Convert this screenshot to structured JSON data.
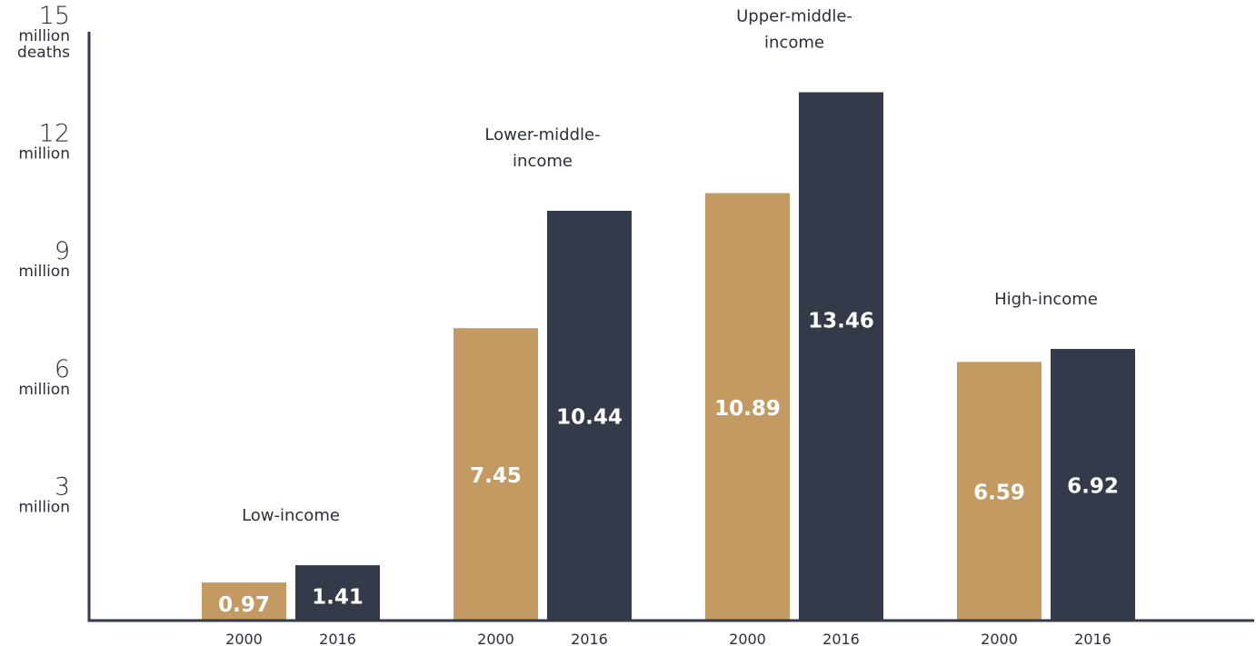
{
  "chart_data": {
    "type": "bar",
    "ylim": [
      0,
      15
    ],
    "grid": false,
    "yticks": [
      {
        "value": 3,
        "label": "3",
        "unit": "million"
      },
      {
        "value": 6,
        "label": "6",
        "unit": "million"
      },
      {
        "value": 9,
        "label": "9",
        "unit": "million"
      },
      {
        "value": 12,
        "label": "12",
        "unit": "million"
      },
      {
        "value": 15,
        "label": "15",
        "unit": "million\ndeaths"
      }
    ],
    "groups": [
      {
        "name": "Low-income",
        "bars": [
          {
            "year": "2000",
            "value": 0.97,
            "label": "0.97"
          },
          {
            "year": "2016",
            "value": 1.41,
            "label": "1.41"
          }
        ]
      },
      {
        "name": "Lower-middle-\nincome",
        "bars": [
          {
            "year": "2000",
            "value": 7.45,
            "label": "7.45"
          },
          {
            "year": "2016",
            "value": 10.44,
            "label": "10.44"
          }
        ]
      },
      {
        "name": "Upper-middle-\nincome",
        "bars": [
          {
            "year": "2000",
            "value": 10.89,
            "label": "10.89"
          },
          {
            "year": "2016",
            "value": 13.46,
            "label": "13.46"
          }
        ]
      },
      {
        "name": "High-income",
        "bars": [
          {
            "year": "2000",
            "value": 6.59,
            "label": "6.59"
          },
          {
            "year": "2016",
            "value": 6.92,
            "label": "6.92"
          }
        ]
      }
    ],
    "colors": {
      "2000": "#c29a62",
      "2016": "#343a49",
      "axis": "#343a49",
      "text": "#2b2f3a",
      "value_text": "#ffffff"
    }
  }
}
